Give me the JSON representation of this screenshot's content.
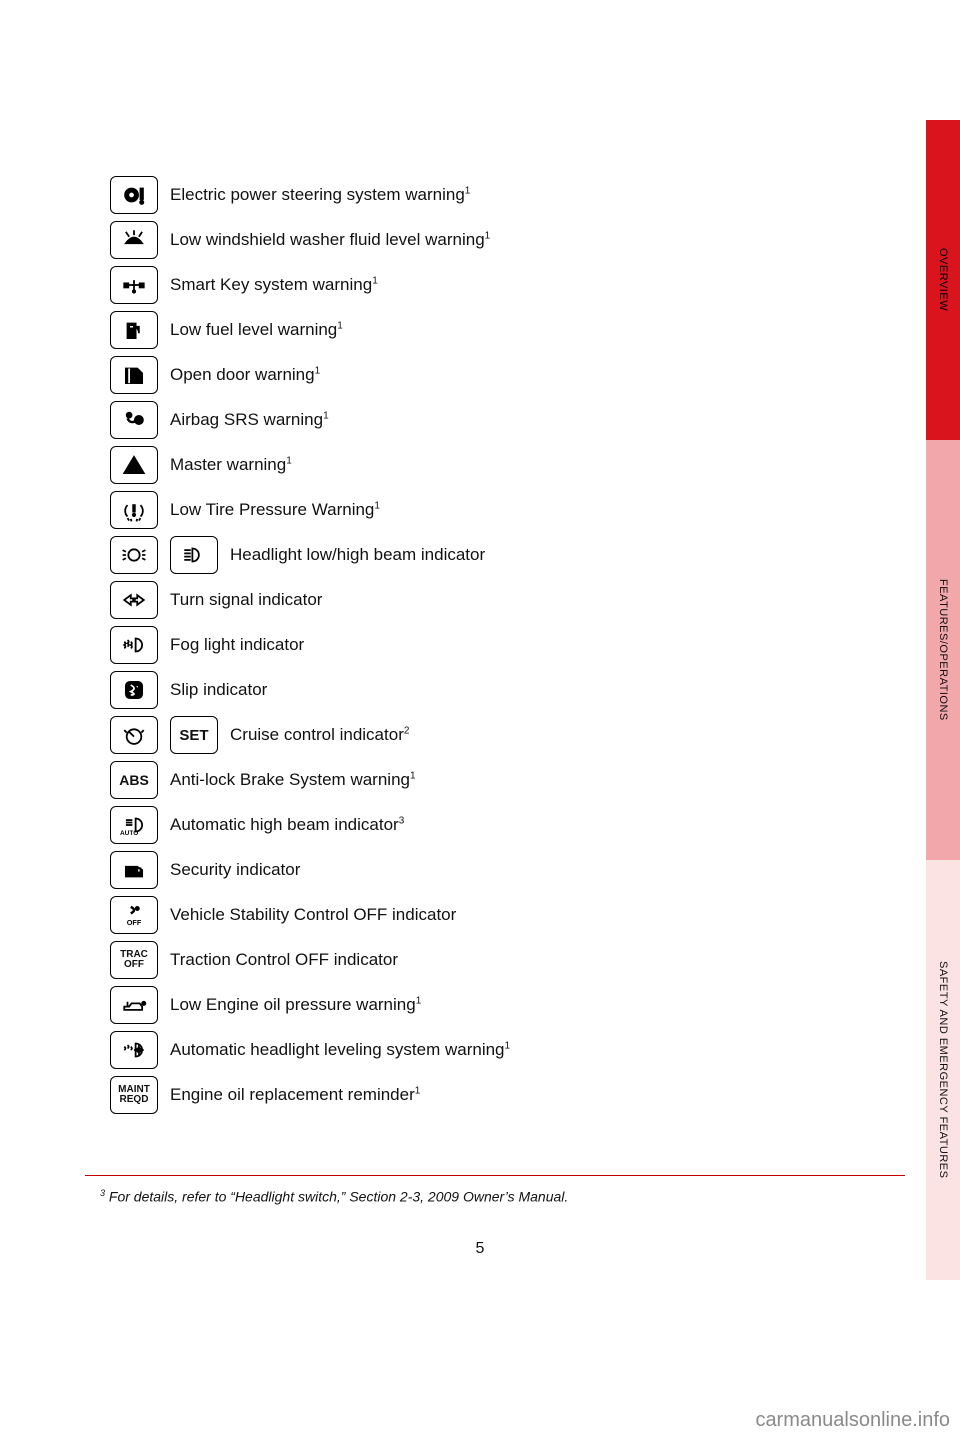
{
  "tabs": {
    "t1": {
      "label": "OVERVIEW",
      "bg": "#d9141c"
    },
    "t2": {
      "label": "FEATURES/OPERATIONS",
      "bg": "#f2a7aa"
    },
    "t3": {
      "label": "SAFETY AND EMERGENCY FEATURES",
      "bg": "#fbe2e3"
    }
  },
  "indicators": [
    {
      "id": "eps",
      "label": "Electric power steering system warning",
      "sup": "1"
    },
    {
      "id": "washer",
      "label": "Low windshield washer fluid level warning",
      "sup": "1"
    },
    {
      "id": "smartkey",
      "label": "Smart Key system warning",
      "sup": "1"
    },
    {
      "id": "fuel",
      "label": "Low fuel level warning",
      "sup": "1"
    },
    {
      "id": "door",
      "label": "Open door warning",
      "sup": "1"
    },
    {
      "id": "airbag",
      "label": "Airbag SRS warning",
      "sup": "1"
    },
    {
      "id": "master",
      "label": "Master warning",
      "sup": "1"
    },
    {
      "id": "tpms",
      "label": "Low Tire Pressure Warning",
      "sup": "1"
    },
    {
      "id": "headlight",
      "label": "Headlight low/high beam indicator",
      "sup": "",
      "double": true
    },
    {
      "id": "turn",
      "label": "Turn signal indicator",
      "sup": ""
    },
    {
      "id": "fog",
      "label": "Fog light indicator",
      "sup": ""
    },
    {
      "id": "slip",
      "label": "Slip indicator",
      "sup": ""
    },
    {
      "id": "cruise",
      "label": "Cruise control indicator",
      "sup": "2",
      "double": true,
      "second_text": "SET"
    },
    {
      "id": "abs",
      "label": "Anti-lock Brake System warning",
      "sup": "1",
      "text": "ABS"
    },
    {
      "id": "autohb",
      "label": "Automatic high beam indicator",
      "sup": "3"
    },
    {
      "id": "security",
      "label": "Security indicator",
      "sup": ""
    },
    {
      "id": "vscoff",
      "label": "Vehicle Stability Control OFF indicator",
      "sup": ""
    },
    {
      "id": "tracoff",
      "label": "Traction Control OFF indicator",
      "sup": "",
      "text": "TRAC\nOFF"
    },
    {
      "id": "oil",
      "label": "Low Engine oil pressure warning",
      "sup": "1"
    },
    {
      "id": "headlevel",
      "label": "Automatic headlight leveling system warning",
      "sup": "1"
    },
    {
      "id": "maint",
      "label": "Engine oil replacement reminder",
      "sup": "1",
      "text": "MAINT\nREQD"
    }
  ],
  "footnote": {
    "sup": "3",
    "text": " For details, refer to “Headlight switch,” Section 2-3, 2009 Owner’s Manual."
  },
  "page_number": "5",
  "watermark": "carmanualsonline.info",
  "colors": {
    "rule": "#c60000"
  }
}
